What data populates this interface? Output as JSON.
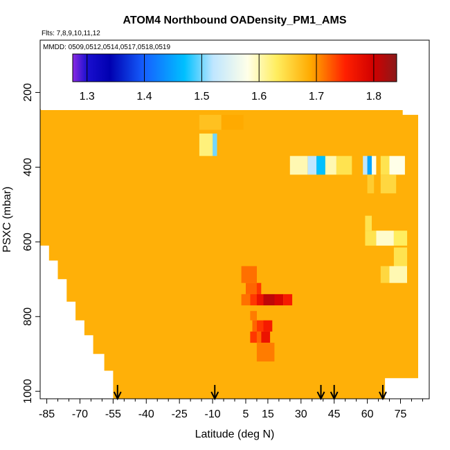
{
  "chart_data": {
    "type": "heatmap",
    "title": "ATOM4 Northbound OADensity_PM1_AMS",
    "flights_label": "Flts: 7,8,9,10,11,12",
    "dates_label": "MMDD: 0509,0512,0514,0517,0518,0519",
    "xlabel": "Latitude (deg N)",
    "ylabel": "PSXC (mbar)",
    "xlim": [
      -88,
      88
    ],
    "ylim": [
      1020,
      60
    ],
    "x_ticks": [
      -85,
      -70,
      -55,
      -40,
      -25,
      -10,
      5,
      15,
      30,
      45,
      60,
      75
    ],
    "x_ticks_all": [
      -85,
      -80,
      -75,
      -70,
      -65,
      -60,
      -55,
      -50,
      -45,
      -40,
      -35,
      -30,
      -25,
      -20,
      -15,
      -10,
      -5,
      0,
      5,
      10,
      15,
      20,
      25,
      30,
      35,
      40,
      45,
      50,
      55,
      60,
      65,
      70,
      75,
      80,
      85
    ],
    "y_ticks": [
      200,
      400,
      600,
      800,
      1000
    ],
    "colorbar": {
      "min": 1.275,
      "max": 1.84,
      "ticks": [
        1.3,
        1.4,
        1.5,
        1.6,
        1.7,
        1.8
      ],
      "tick_labels": [
        "1.3",
        "1.4",
        "1.5",
        "1.6",
        "1.7",
        "1.8"
      ],
      "stops": [
        {
          "v": 1.275,
          "c": "#8b2be2"
        },
        {
          "v": 1.3,
          "c": "#1a0fcf"
        },
        {
          "v": 1.34,
          "c": "#0000b0"
        },
        {
          "v": 1.4,
          "c": "#1560ff"
        },
        {
          "v": 1.47,
          "c": "#00c0ff"
        },
        {
          "v": 1.52,
          "c": "#bfe6ff"
        },
        {
          "v": 1.58,
          "c": "#ffffe8"
        },
        {
          "v": 1.63,
          "c": "#ffee60"
        },
        {
          "v": 1.69,
          "c": "#ffaa00"
        },
        {
          "v": 1.75,
          "c": "#ff2000"
        },
        {
          "v": 1.8,
          "c": "#d00000"
        },
        {
          "v": 1.84,
          "c": "#8b1a1a"
        }
      ]
    },
    "background_value": 1.685,
    "coverage_profile": [
      {
        "lat": -88,
        "p_top": 245,
        "p_bot": 610
      },
      {
        "lat": -84,
        "p_top": 240,
        "p_bot": 610
      },
      {
        "lat": -84,
        "p_top": 240,
        "p_bot": 650
      },
      {
        "lat": -80,
        "p_top": 240,
        "p_bot": 650
      },
      {
        "lat": -80,
        "p_top": 235,
        "p_bot": 700
      },
      {
        "lat": -76,
        "p_top": 230,
        "p_bot": 700
      },
      {
        "lat": -76,
        "p_top": 170,
        "p_bot": 760
      },
      {
        "lat": -72,
        "p_top": 170,
        "p_bot": 760
      },
      {
        "lat": -72,
        "p_top": 170,
        "p_bot": 810
      },
      {
        "lat": -68,
        "p_top": 170,
        "p_bot": 810
      },
      {
        "lat": -68,
        "p_top": 170,
        "p_bot": 850
      },
      {
        "lat": -64,
        "p_top": 170,
        "p_bot": 850
      },
      {
        "lat": -64,
        "p_top": 170,
        "p_bot": 900
      },
      {
        "lat": -59,
        "p_top": 170,
        "p_bot": 900
      },
      {
        "lat": -59,
        "p_top": 170,
        "p_bot": 945
      },
      {
        "lat": -55,
        "p_top": 170,
        "p_bot": 945
      },
      {
        "lat": -55,
        "p_top": 170,
        "p_bot": 1020
      },
      {
        "lat": 68,
        "p_top": 170,
        "p_bot": 1020
      },
      {
        "lat": 68,
        "p_top": 170,
        "p_bot": 965
      },
      {
        "lat": 73,
        "p_top": 170,
        "p_bot": 965
      },
      {
        "lat": 73,
        "p_top": 220,
        "p_bot": 965
      },
      {
        "lat": 76,
        "p_top": 220,
        "p_bot": 965
      },
      {
        "lat": 76,
        "p_top": 260,
        "p_bot": 965
      },
      {
        "lat": 83,
        "p_top": 260,
        "p_bot": 965
      }
    ],
    "cells": [
      {
        "lat0": -10,
        "lat1": -8,
        "p0": 310,
        "p1": 370,
        "value": 1.5
      },
      {
        "lat0": -16,
        "lat1": -10,
        "p0": 310,
        "p1": 370,
        "value": 1.62
      },
      {
        "lat0": -16,
        "lat1": -6,
        "p0": 260,
        "p1": 300,
        "value": 1.67
      },
      {
        "lat0": -6,
        "lat1": 4,
        "p0": 260,
        "p1": 300,
        "value": 1.69
      },
      {
        "lat0": 25,
        "lat1": 33,
        "p0": 370,
        "p1": 420,
        "value": 1.6
      },
      {
        "lat0": 33,
        "lat1": 37,
        "p0": 370,
        "p1": 420,
        "value": 1.52
      },
      {
        "lat0": 37,
        "lat1": 41,
        "p0": 370,
        "p1": 420,
        "value": 1.47
      },
      {
        "lat0": 41,
        "lat1": 46,
        "p0": 370,
        "p1": 420,
        "value": 1.6
      },
      {
        "lat0": 46,
        "lat1": 53,
        "p0": 370,
        "p1": 420,
        "value": 1.64
      },
      {
        "lat0": 58,
        "lat1": 60,
        "p0": 370,
        "p1": 420,
        "value": 1.52
      },
      {
        "lat0": 60,
        "lat1": 62,
        "p0": 370,
        "p1": 420,
        "value": 1.45
      },
      {
        "lat0": 62,
        "lat1": 64,
        "p0": 370,
        "p1": 420,
        "value": 1.58
      },
      {
        "lat0": 66,
        "lat1": 70,
        "p0": 370,
        "p1": 420,
        "value": 1.64
      },
      {
        "lat0": 70,
        "lat1": 77,
        "p0": 370,
        "p1": 420,
        "value": 1.58
      },
      {
        "lat0": 60,
        "lat1": 63,
        "p0": 420,
        "p1": 470,
        "value": 1.66
      },
      {
        "lat0": 66,
        "lat1": 73,
        "p0": 420,
        "p1": 470,
        "value": 1.65
      },
      {
        "lat0": 59,
        "lat1": 62,
        "p0": 530,
        "p1": 570,
        "value": 1.64
      },
      {
        "lat0": 59,
        "lat1": 64,
        "p0": 570,
        "p1": 610,
        "value": 1.64
      },
      {
        "lat0": 64,
        "lat1": 72,
        "p0": 570,
        "p1": 610,
        "value": 1.59
      },
      {
        "lat0": 72,
        "lat1": 78,
        "p0": 570,
        "p1": 610,
        "value": 1.63
      },
      {
        "lat0": 72,
        "lat1": 78,
        "p0": 615,
        "p1": 665,
        "value": 1.64
      },
      {
        "lat0": 66,
        "lat1": 70,
        "p0": 665,
        "p1": 710,
        "value": 1.65
      },
      {
        "lat0": 70,
        "lat1": 78,
        "p0": 665,
        "p1": 710,
        "value": 1.6
      },
      {
        "lat0": 3,
        "lat1": 10,
        "p0": 665,
        "p1": 710,
        "value": 1.715
      },
      {
        "lat0": 5,
        "lat1": 10,
        "p0": 710,
        "p1": 740,
        "value": 1.72
      },
      {
        "lat0": 10,
        "lat1": 12,
        "p0": 710,
        "p1": 740,
        "value": 1.74
      },
      {
        "lat0": 3,
        "lat1": 7,
        "p0": 740,
        "p1": 770,
        "value": 1.715
      },
      {
        "lat0": 7,
        "lat1": 10,
        "p0": 740,
        "p1": 770,
        "value": 1.74
      },
      {
        "lat0": 10,
        "lat1": 13,
        "p0": 740,
        "p1": 770,
        "value": 1.77
      },
      {
        "lat0": 13,
        "lat1": 18,
        "p0": 740,
        "p1": 770,
        "value": 1.81
      },
      {
        "lat0": 18,
        "lat1": 22,
        "p0": 740,
        "p1": 770,
        "value": 1.79
      },
      {
        "lat0": 22,
        "lat1": 26,
        "p0": 740,
        "p1": 770,
        "value": 1.76
      },
      {
        "lat0": 7,
        "lat1": 10,
        "p0": 785,
        "p1": 810,
        "value": 1.71
      },
      {
        "lat0": 8,
        "lat1": 10,
        "p0": 810,
        "p1": 840,
        "value": 1.72
      },
      {
        "lat0": 10,
        "lat1": 13,
        "p0": 810,
        "p1": 840,
        "value": 1.74
      },
      {
        "lat0": 13,
        "lat1": 17,
        "p0": 810,
        "p1": 840,
        "value": 1.76
      },
      {
        "lat0": 7,
        "lat1": 10,
        "p0": 840,
        "p1": 870,
        "value": 1.74
      },
      {
        "lat0": 10,
        "lat1": 12,
        "p0": 840,
        "p1": 870,
        "value": 1.72
      },
      {
        "lat0": 12,
        "lat1": 16,
        "p0": 840,
        "p1": 870,
        "value": 1.77
      },
      {
        "lat0": 10,
        "lat1": 18,
        "p0": 870,
        "p1": 920,
        "value": 1.71
      }
    ],
    "markers_lat": [
      -53,
      -9,
      39,
      45,
      67
    ]
  }
}
